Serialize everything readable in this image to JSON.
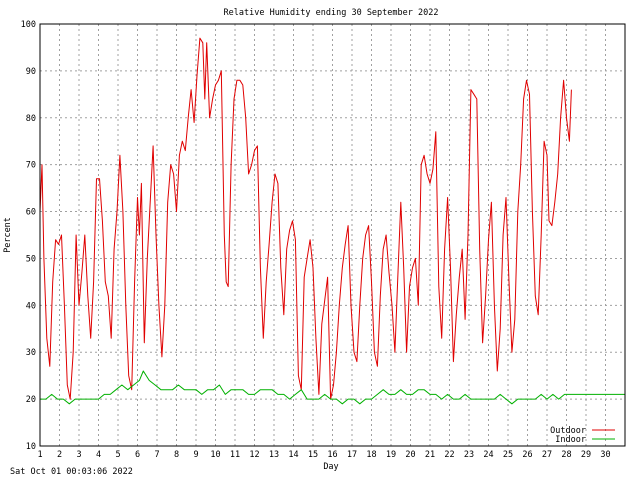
{
  "chart_data": {
    "type": "line",
    "title": "Relative Humidity ending 30 September 2022",
    "xlabel": "Day",
    "ylabel": "Percent",
    "xlim": [
      1,
      31
    ],
    "ylim": [
      10,
      100
    ],
    "yticks": [
      "10",
      "20",
      "30",
      "40",
      "50",
      "60",
      "70",
      "80",
      "90",
      "100"
    ],
    "xticks": [
      "1",
      "2",
      "3",
      "4",
      "5",
      "6",
      "7",
      "8",
      "9",
      "10",
      "11",
      "12",
      "13",
      "14",
      "15",
      "16",
      "17",
      "18",
      "19",
      "20",
      "21",
      "22",
      "23",
      "24",
      "25",
      "26",
      "27",
      "28",
      "29",
      "30"
    ],
    "grid": true,
    "legend": "bottom-right",
    "series": [
      {
        "name": "Outdoor",
        "color": "#e00000",
        "points": [
          [
            1.0,
            60
          ],
          [
            1.1,
            70
          ],
          [
            1.2,
            50
          ],
          [
            1.35,
            33
          ],
          [
            1.5,
            27
          ],
          [
            1.65,
            45
          ],
          [
            1.8,
            54
          ],
          [
            1.95,
            53
          ],
          [
            2.1,
            55
          ],
          [
            2.25,
            40
          ],
          [
            2.4,
            23
          ],
          [
            2.55,
            20
          ],
          [
            2.7,
            30
          ],
          [
            2.85,
            55
          ],
          [
            3.0,
            40
          ],
          [
            3.15,
            47
          ],
          [
            3.3,
            55
          ],
          [
            3.45,
            42
          ],
          [
            3.6,
            33
          ],
          [
            3.75,
            45
          ],
          [
            3.9,
            67
          ],
          [
            4.05,
            67
          ],
          [
            4.2,
            58
          ],
          [
            4.35,
            45
          ],
          [
            4.5,
            42
          ],
          [
            4.65,
            33
          ],
          [
            4.8,
            52
          ],
          [
            4.95,
            60
          ],
          [
            5.1,
            72
          ],
          [
            5.25,
            60
          ],
          [
            5.4,
            40
          ],
          [
            5.55,
            25
          ],
          [
            5.7,
            22
          ],
          [
            5.85,
            45
          ],
          [
            6.0,
            63
          ],
          [
            6.1,
            55
          ],
          [
            6.2,
            66
          ],
          [
            6.35,
            32
          ],
          [
            6.5,
            50
          ],
          [
            6.65,
            62
          ],
          [
            6.8,
            74
          ],
          [
            6.95,
            55
          ],
          [
            7.1,
            40
          ],
          [
            7.25,
            29
          ],
          [
            7.4,
            40
          ],
          [
            7.55,
            62
          ],
          [
            7.7,
            70
          ],
          [
            7.85,
            68
          ],
          [
            8.0,
            60
          ],
          [
            8.15,
            72
          ],
          [
            8.3,
            75
          ],
          [
            8.45,
            73
          ],
          [
            8.6,
            80
          ],
          [
            8.75,
            86
          ],
          [
            8.9,
            79
          ],
          [
            9.05,
            89
          ],
          [
            9.2,
            97
          ],
          [
            9.35,
            96
          ],
          [
            9.45,
            84
          ],
          [
            9.55,
            96
          ],
          [
            9.7,
            80
          ],
          [
            9.85,
            84
          ],
          [
            10.0,
            87
          ],
          [
            10.15,
            88
          ],
          [
            10.3,
            90
          ],
          [
            10.45,
            55
          ],
          [
            10.55,
            45
          ],
          [
            10.65,
            44
          ],
          [
            10.8,
            70
          ],
          [
            10.95,
            84
          ],
          [
            11.1,
            88
          ],
          [
            11.25,
            88
          ],
          [
            11.4,
            87
          ],
          [
            11.55,
            80
          ],
          [
            11.7,
            68
          ],
          [
            11.85,
            70
          ],
          [
            12.0,
            73
          ],
          [
            12.15,
            74
          ],
          [
            12.3,
            48
          ],
          [
            12.45,
            33
          ],
          [
            12.6,
            45
          ],
          [
            12.75,
            53
          ],
          [
            12.9,
            62
          ],
          [
            13.05,
            68
          ],
          [
            13.2,
            66
          ],
          [
            13.35,
            48
          ],
          [
            13.5,
            38
          ],
          [
            13.65,
            52
          ],
          [
            13.8,
            56
          ],
          [
            13.95,
            58
          ],
          [
            14.1,
            54
          ],
          [
            14.25,
            25
          ],
          [
            14.4,
            22
          ],
          [
            14.55,
            46
          ],
          [
            14.7,
            50
          ],
          [
            14.85,
            54
          ],
          [
            15.0,
            48
          ],
          [
            15.15,
            33
          ],
          [
            15.3,
            21
          ],
          [
            15.45,
            36
          ],
          [
            15.6,
            41
          ],
          [
            15.75,
            46
          ],
          [
            15.9,
            20
          ],
          [
            16.05,
            23
          ],
          [
            16.2,
            30
          ],
          [
            16.35,
            40
          ],
          [
            16.5,
            48
          ],
          [
            16.65,
            53
          ],
          [
            16.8,
            57
          ],
          [
            16.95,
            40
          ],
          [
            17.1,
            30
          ],
          [
            17.25,
            28
          ],
          [
            17.4,
            40
          ],
          [
            17.55,
            50
          ],
          [
            17.7,
            55
          ],
          [
            17.85,
            57
          ],
          [
            18.0,
            45
          ],
          [
            18.15,
            30
          ],
          [
            18.3,
            27
          ],
          [
            18.45,
            42
          ],
          [
            18.6,
            52
          ],
          [
            18.75,
            55
          ],
          [
            18.9,
            47
          ],
          [
            19.05,
            40
          ],
          [
            19.2,
            30
          ],
          [
            19.35,
            46
          ],
          [
            19.5,
            62
          ],
          [
            19.65,
            48
          ],
          [
            19.8,
            30
          ],
          [
            19.95,
            44
          ],
          [
            20.1,
            48
          ],
          [
            20.25,
            50
          ],
          [
            20.4,
            40
          ],
          [
            20.55,
            70
          ],
          [
            20.7,
            72
          ],
          [
            20.85,
            68
          ],
          [
            21.0,
            66
          ],
          [
            21.15,
            69
          ],
          [
            21.3,
            77
          ],
          [
            21.45,
            44
          ],
          [
            21.6,
            33
          ],
          [
            21.75,
            52
          ],
          [
            21.9,
            63
          ],
          [
            22.05,
            48
          ],
          [
            22.2,
            28
          ],
          [
            22.35,
            38
          ],
          [
            22.5,
            46
          ],
          [
            22.65,
            52
          ],
          [
            22.8,
            37
          ],
          [
            22.95,
            55
          ],
          [
            23.1,
            86
          ],
          [
            23.25,
            85
          ],
          [
            23.4,
            84
          ],
          [
            23.55,
            52
          ],
          [
            23.7,
            32
          ],
          [
            23.85,
            42
          ],
          [
            24.0,
            54
          ],
          [
            24.15,
            62
          ],
          [
            24.3,
            40
          ],
          [
            24.45,
            26
          ],
          [
            24.6,
            35
          ],
          [
            24.75,
            55
          ],
          [
            24.9,
            63
          ],
          [
            25.05,
            45
          ],
          [
            25.2,
            30
          ],
          [
            25.35,
            37
          ],
          [
            25.5,
            60
          ],
          [
            25.65,
            70
          ],
          [
            25.8,
            84
          ],
          [
            25.95,
            88
          ],
          [
            26.1,
            85
          ],
          [
            26.25,
            60
          ],
          [
            26.4,
            42
          ],
          [
            26.55,
            38
          ],
          [
            26.7,
            55
          ],
          [
            26.85,
            75
          ],
          [
            27.0,
            72
          ],
          [
            27.1,
            58
          ],
          [
            27.25,
            57
          ],
          [
            27.4,
            62
          ],
          [
            27.55,
            68
          ],
          [
            27.7,
            80
          ],
          [
            27.85,
            88
          ],
          [
            28.0,
            80
          ],
          [
            28.15,
            75
          ],
          [
            28.25,
            86
          ]
        ]
      },
      {
        "name": "Indoor",
        "color": "#00b000",
        "points": [
          [
            1.0,
            20
          ],
          [
            1.3,
            20
          ],
          [
            1.6,
            21
          ],
          [
            1.9,
            20
          ],
          [
            2.2,
            20
          ],
          [
            2.5,
            19
          ],
          [
            2.8,
            20
          ],
          [
            3.1,
            20
          ],
          [
            3.4,
            20
          ],
          [
            3.7,
            20
          ],
          [
            4.0,
            20
          ],
          [
            4.3,
            21
          ],
          [
            4.6,
            21
          ],
          [
            4.9,
            22
          ],
          [
            5.2,
            23
          ],
          [
            5.5,
            22
          ],
          [
            5.8,
            23
          ],
          [
            6.1,
            24
          ],
          [
            6.3,
            26
          ],
          [
            6.6,
            24
          ],
          [
            6.9,
            23
          ],
          [
            7.2,
            22
          ],
          [
            7.5,
            22
          ],
          [
            7.8,
            22
          ],
          [
            8.1,
            23
          ],
          [
            8.4,
            22
          ],
          [
            8.7,
            22
          ],
          [
            9.0,
            22
          ],
          [
            9.3,
            21
          ],
          [
            9.6,
            22
          ],
          [
            9.9,
            22
          ],
          [
            10.2,
            23
          ],
          [
            10.5,
            21
          ],
          [
            10.8,
            22
          ],
          [
            11.1,
            22
          ],
          [
            11.4,
            22
          ],
          [
            11.7,
            21
          ],
          [
            12.0,
            21
          ],
          [
            12.3,
            22
          ],
          [
            12.6,
            22
          ],
          [
            12.9,
            22
          ],
          [
            13.2,
            21
          ],
          [
            13.5,
            21
          ],
          [
            13.8,
            20
          ],
          [
            14.1,
            21
          ],
          [
            14.4,
            22
          ],
          [
            14.7,
            20
          ],
          [
            15.0,
            20
          ],
          [
            15.3,
            20
          ],
          [
            15.6,
            21
          ],
          [
            15.9,
            20
          ],
          [
            16.2,
            20
          ],
          [
            16.5,
            19
          ],
          [
            16.8,
            20
          ],
          [
            17.1,
            20
          ],
          [
            17.4,
            19
          ],
          [
            17.7,
            20
          ],
          [
            18.0,
            20
          ],
          [
            18.3,
            21
          ],
          [
            18.6,
            22
          ],
          [
            18.9,
            21
          ],
          [
            19.2,
            21
          ],
          [
            19.5,
            22
          ],
          [
            19.8,
            21
          ],
          [
            20.1,
            21
          ],
          [
            20.4,
            22
          ],
          [
            20.7,
            22
          ],
          [
            21.0,
            21
          ],
          [
            21.3,
            21
          ],
          [
            21.6,
            20
          ],
          [
            21.9,
            21
          ],
          [
            22.2,
            20
          ],
          [
            22.5,
            20
          ],
          [
            22.8,
            21
          ],
          [
            23.1,
            20
          ],
          [
            23.4,
            20
          ],
          [
            23.7,
            20
          ],
          [
            24.0,
            20
          ],
          [
            24.3,
            20
          ],
          [
            24.6,
            21
          ],
          [
            24.9,
            20
          ],
          [
            25.2,
            19
          ],
          [
            25.5,
            20
          ],
          [
            25.8,
            20
          ],
          [
            26.1,
            20
          ],
          [
            26.4,
            20
          ],
          [
            26.7,
            21
          ],
          [
            27.0,
            20
          ],
          [
            27.3,
            21
          ],
          [
            27.6,
            20
          ],
          [
            27.9,
            21
          ],
          [
            28.2,
            21
          ],
          [
            28.5,
            21
          ],
          [
            28.8,
            21
          ],
          [
            29.1,
            21
          ],
          [
            29.4,
            21
          ],
          [
            29.7,
            21
          ],
          [
            30.0,
            21
          ],
          [
            30.3,
            21
          ],
          [
            30.6,
            21
          ],
          [
            31.0,
            21
          ]
        ]
      }
    ]
  },
  "footer": {
    "timestamp": "Sat Oct 01 00:03:06 2022"
  }
}
